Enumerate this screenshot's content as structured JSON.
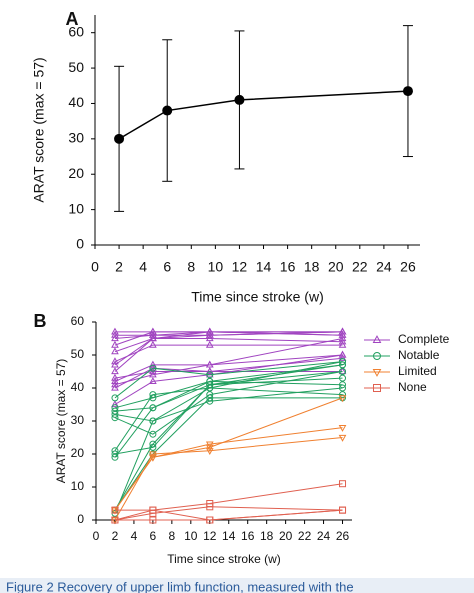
{
  "chart_data": [
    {
      "type": "line",
      "label": "A",
      "ylabel": "ARAT score (max = 57)",
      "xlabel": "Time since stroke (w)",
      "x": [
        2,
        6,
        12,
        26
      ],
      "values": [
        30,
        38,
        41,
        43.5
      ],
      "error": [
        20.5,
        20,
        19.5,
        18.5
      ],
      "color": "#000000",
      "xlim": [
        0,
        27
      ],
      "xticks": [
        0,
        2,
        4,
        6,
        8,
        10,
        12,
        14,
        16,
        18,
        20,
        22,
        24,
        26
      ],
      "ylim": [
        0,
        65
      ],
      "yticks": [
        0,
        10,
        20,
        30,
        40,
        50,
        60
      ]
    },
    {
      "type": "line",
      "label": "B",
      "ylabel": "ARAT score (max = 57)",
      "xlabel": "Time since stroke (w)",
      "x": [
        2,
        6,
        12,
        26
      ],
      "legend": "upper right",
      "xlim": [
        0,
        27
      ],
      "xticks": [
        0,
        2,
        4,
        6,
        8,
        10,
        12,
        14,
        16,
        18,
        20,
        22,
        24,
        26
      ],
      "ylim": [
        0,
        60
      ],
      "yticks": [
        0,
        10,
        20,
        30,
        40,
        50,
        60
      ],
      "series": [
        {
          "name": "Complete",
          "color": "#a044c0",
          "marker": "triangle-up",
          "lines": [
            [
              57,
              57,
              57,
              57
            ],
            [
              56,
              56,
              57,
              57
            ],
            [
              55,
              56,
              56,
              57
            ],
            [
              53,
              57,
              57,
              56
            ],
            [
              51,
              55,
              57,
              56
            ],
            [
              48,
              53,
              53,
              53
            ],
            [
              47,
              55,
              55,
              54
            ],
            [
              45,
              55,
              56,
              57
            ],
            [
              43,
              45,
              45,
              45
            ],
            [
              42,
              47,
              47,
              50
            ],
            [
              41,
              44,
              47,
              55
            ],
            [
              40,
              46,
              45,
              49
            ],
            [
              35,
              42,
              44,
              50
            ]
          ]
        },
        {
          "name": "Notable",
          "color": "#22a060",
          "marker": "circle",
          "lines": [
            [
              37,
              46,
              44,
              48
            ],
            [
              34,
              37,
              42,
              47
            ],
            [
              33,
              34,
              41,
              43
            ],
            [
              32,
              30,
              36,
              40
            ],
            [
              31,
              26,
              38,
              45
            ],
            [
              21,
              38,
              40,
              38
            ],
            [
              20,
              22,
              41,
              45
            ],
            [
              19,
              34,
              42,
              41
            ],
            [
              3,
              20,
              37,
              37
            ],
            [
              3,
              23,
              41,
              47
            ],
            [
              2,
              30,
              40,
              48
            ]
          ]
        },
        {
          "name": "Limited",
          "color": "#f08030",
          "marker": "triangle-down",
          "lines": [
            [
              3,
              19,
              23,
              28
            ],
            [
              0,
              20,
              21,
              25
            ],
            [
              3,
              19,
              22,
              37
            ]
          ]
        },
        {
          "name": "None",
          "color": "#e06050",
          "marker": "square",
          "lines": [
            [
              3,
              3,
              5,
              11
            ],
            [
              0,
              2,
              4,
              3
            ],
            [
              0,
              3,
              0,
              3
            ],
            [
              0,
              0,
              0,
              3
            ]
          ]
        }
      ]
    }
  ],
  "caption": "Figure 2 Recovery of upper limb function, measured with the"
}
